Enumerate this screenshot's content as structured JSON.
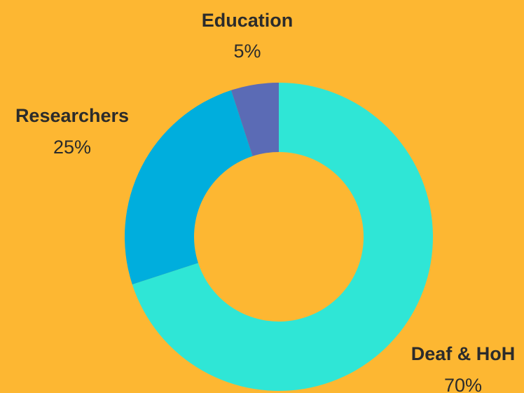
{
  "chart_data": {
    "type": "pie",
    "variant": "donut",
    "title": "",
    "background": "#FDB732",
    "slices": [
      {
        "label": "Deaf & HoH",
        "value": 70,
        "value_label": "70%",
        "color": "#2FE6D6"
      },
      {
        "label": "Researchers",
        "value": 25,
        "value_label": "25%",
        "color": "#00AEDD"
      },
      {
        "label": "Education",
        "value": 5,
        "value_label": "5%",
        "color": "#5B6BB5"
      }
    ]
  }
}
